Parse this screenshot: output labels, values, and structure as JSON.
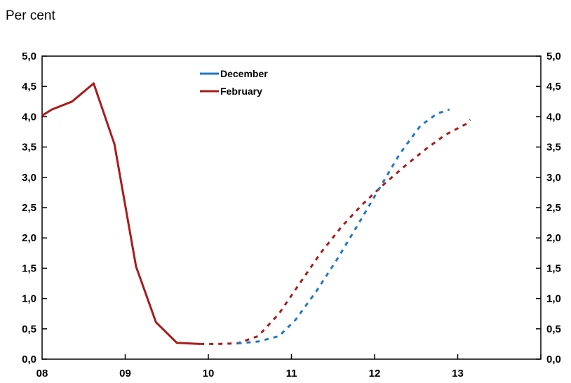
{
  "unit_label": "Per cent",
  "colors": {
    "december": "#1f78c8",
    "february": "#a81b1b",
    "axis": "#000000"
  },
  "chart_data": {
    "type": "line",
    "xlabel": "",
    "ylabel": "Per cent",
    "x_tick_labels": [
      "08",
      "09",
      "10",
      "11",
      "12",
      "13"
    ],
    "y_tick_labels": [
      "0,0",
      "0,5",
      "1,0",
      "1,5",
      "2,0",
      "2,5",
      "3,0",
      "3,5",
      "4,0",
      "4,5",
      "5,0"
    ],
    "xlim": [
      2008.0,
      2014.0
    ],
    "ylim": [
      0,
      5
    ],
    "grid": false,
    "legend_position": "top-center",
    "series": [
      {
        "name": "February",
        "color": "#a81b1b",
        "style": "solid",
        "points": [
          [
            2008.0,
            4.02
          ],
          [
            2008.12,
            4.12
          ],
          [
            2008.36,
            4.25
          ],
          [
            2008.62,
            4.55
          ],
          [
            2008.87,
            3.55
          ],
          [
            2009.13,
            1.53
          ],
          [
            2009.37,
            0.61
          ],
          [
            2009.62,
            0.27
          ],
          [
            2009.9,
            0.25
          ]
        ]
      },
      {
        "name": "February",
        "color": "#a81b1b",
        "style": "dashed",
        "points": [
          [
            2009.9,
            0.25
          ],
          [
            2010.1,
            0.25
          ],
          [
            2010.35,
            0.26
          ],
          [
            2010.6,
            0.38
          ],
          [
            2010.85,
            0.75
          ],
          [
            2011.1,
            1.25
          ],
          [
            2011.35,
            1.75
          ],
          [
            2011.6,
            2.18
          ],
          [
            2011.85,
            2.55
          ],
          [
            2012.1,
            2.87
          ],
          [
            2012.35,
            3.17
          ],
          [
            2012.6,
            3.45
          ],
          [
            2012.85,
            3.7
          ],
          [
            2013.1,
            3.88
          ],
          [
            2013.15,
            3.95
          ]
        ]
      },
      {
        "name": "December",
        "color": "#1f78c8",
        "style": "dashed",
        "points": [
          [
            2010.35,
            0.26
          ],
          [
            2010.6,
            0.29
          ],
          [
            2010.85,
            0.38
          ],
          [
            2011.05,
            0.65
          ],
          [
            2011.3,
            1.12
          ],
          [
            2011.55,
            1.65
          ],
          [
            2011.8,
            2.22
          ],
          [
            2012.05,
            2.8
          ],
          [
            2012.3,
            3.38
          ],
          [
            2012.55,
            3.85
          ],
          [
            2012.75,
            4.05
          ],
          [
            2012.9,
            4.12
          ]
        ]
      }
    ]
  }
}
